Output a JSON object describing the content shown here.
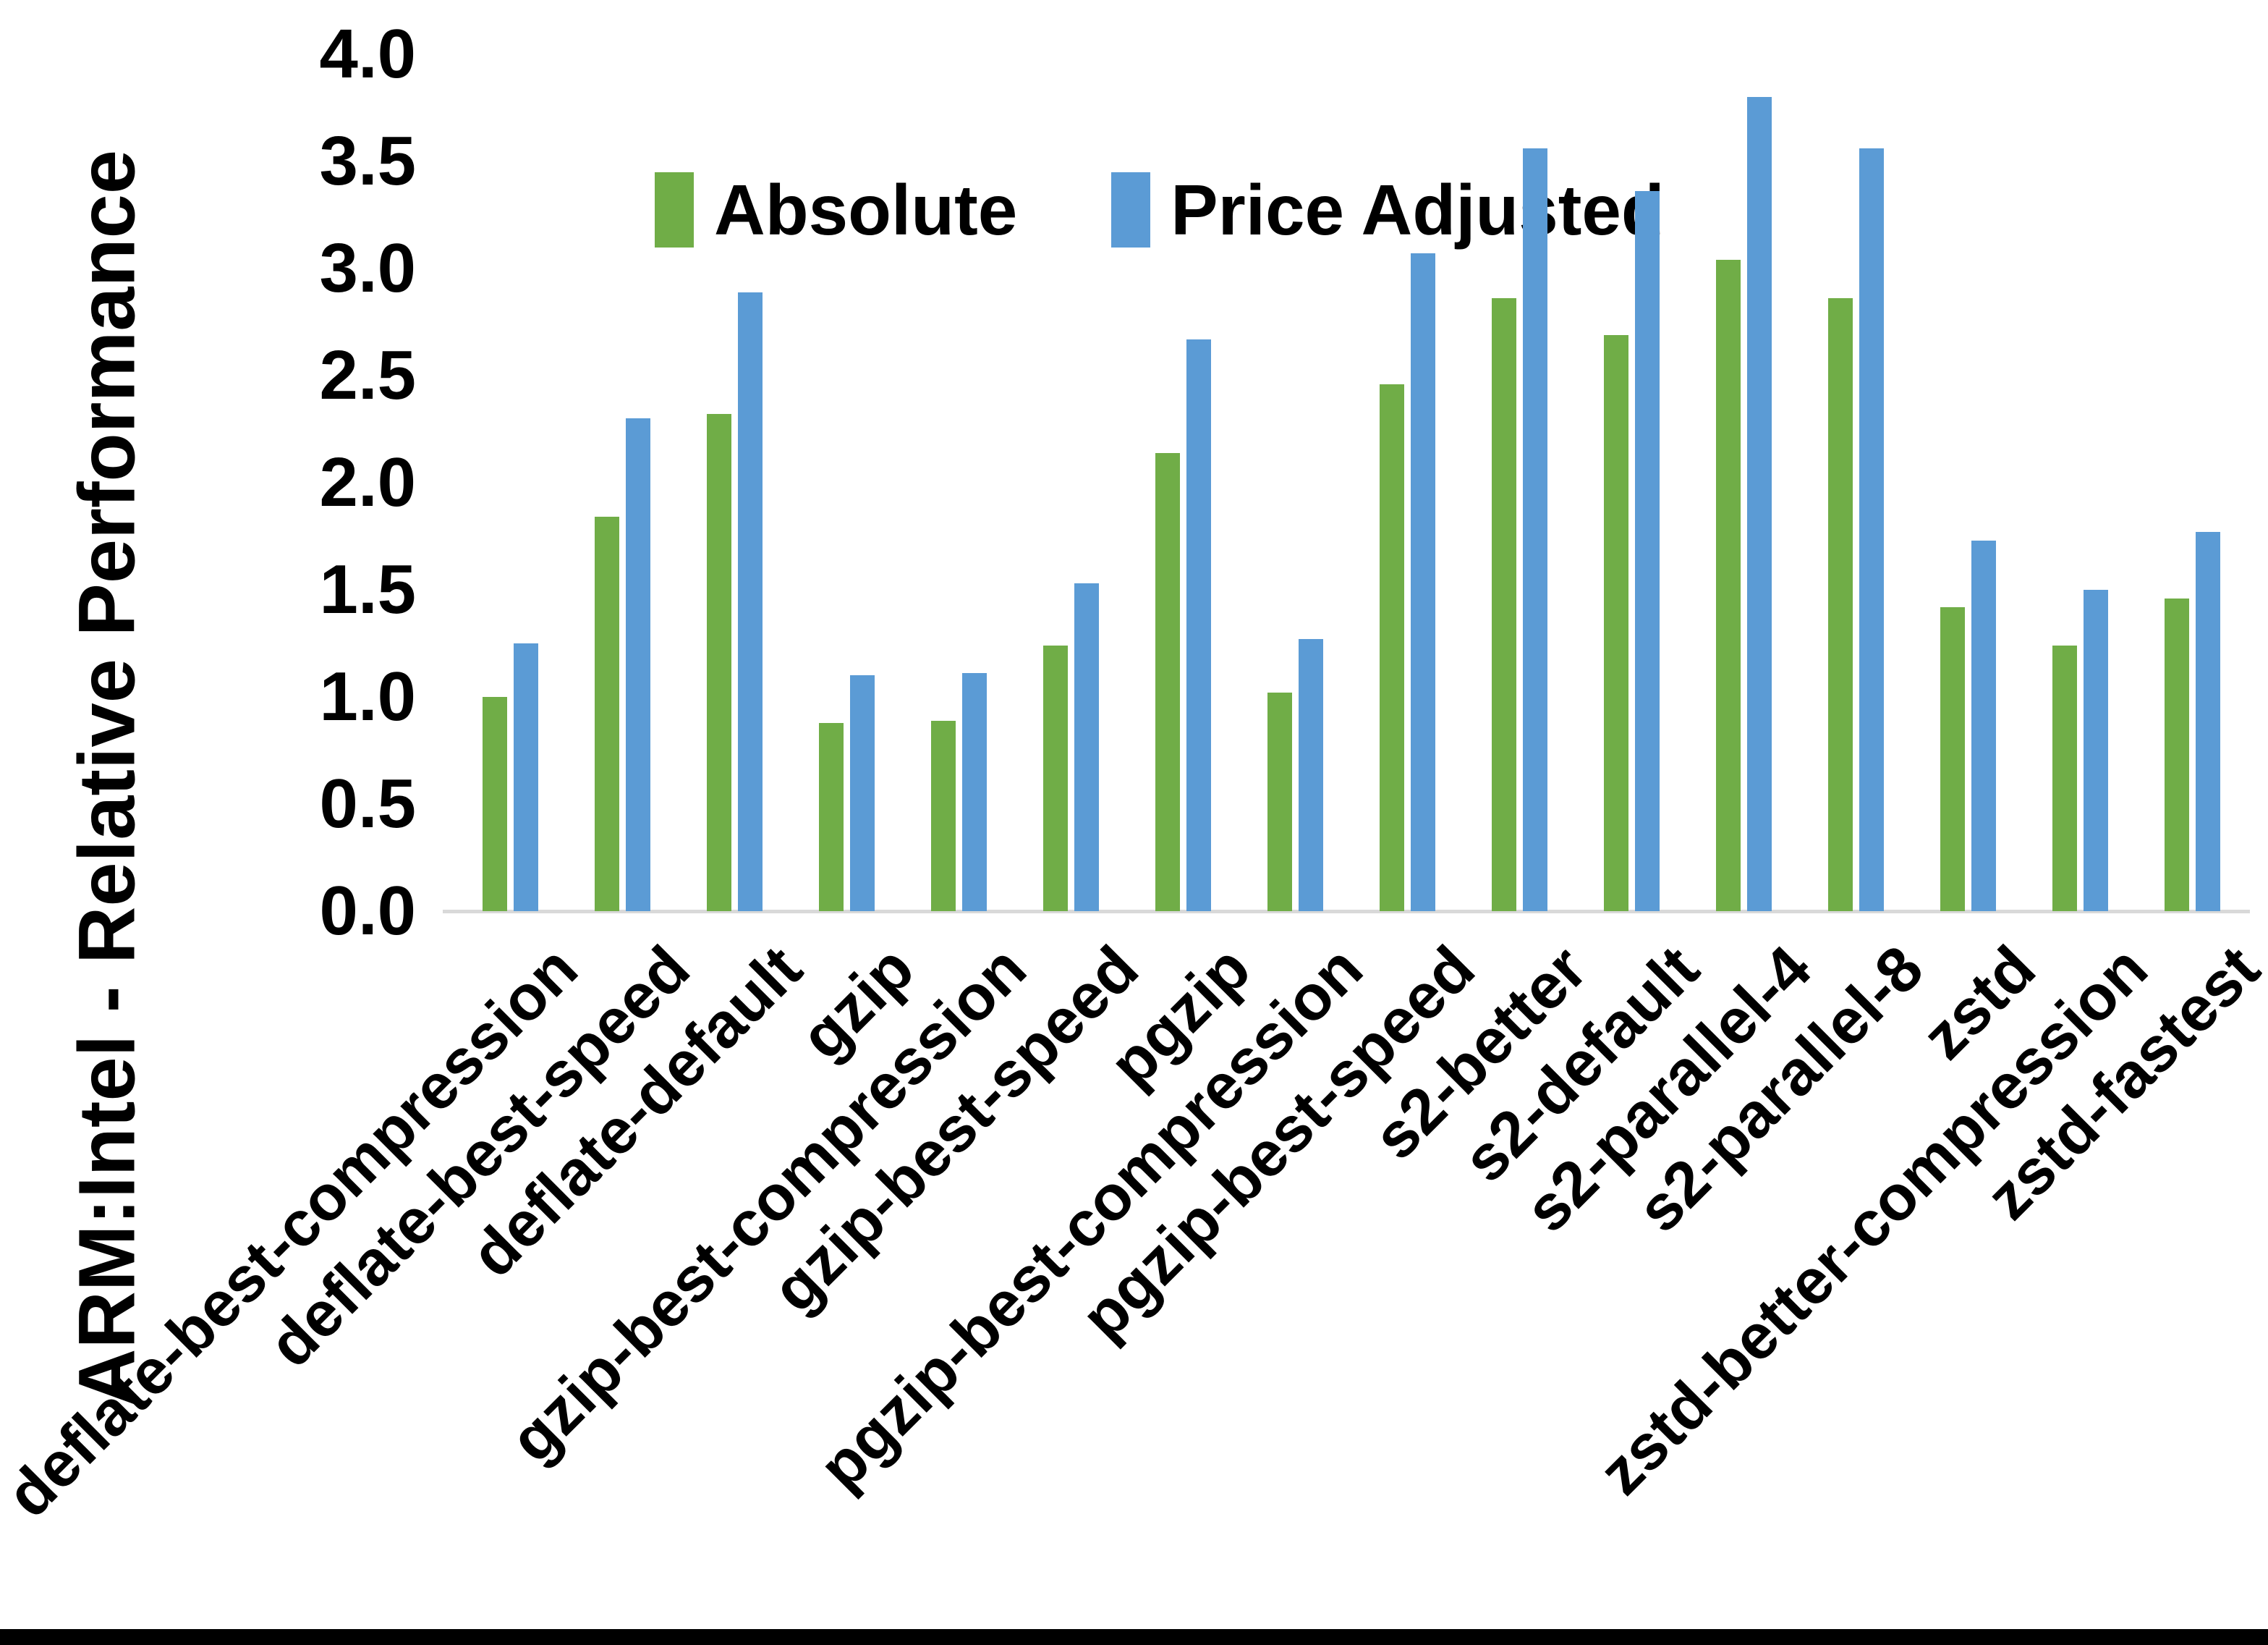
{
  "legend": {
    "items": [
      {
        "label": "Absolute",
        "color": "#70AD47"
      },
      {
        "label": "Price Adjusted",
        "color": "#5B9BD5"
      }
    ]
  },
  "y_axis": {
    "title": "ARM:Intel - Relative Performance",
    "tick_labels": [
      "0.0",
      "0.5",
      "1.0",
      "1.5",
      "2.0",
      "2.5",
      "3.0",
      "3.5",
      "4.0"
    ],
    "min": 0,
    "max": 4,
    "step": 0.5
  },
  "chart_data": {
    "type": "bar",
    "title": "",
    "xlabel": "",
    "ylabel": "ARM:Intel - Relative Performance",
    "ylim": [
      0,
      4
    ],
    "ytick_step": 0.5,
    "grid": false,
    "legend_position": "top-center",
    "axis_line_color": "#D9D9D9",
    "categories": [
      "deflate-best-compression",
      "deflate-best-speed",
      "deflate-default",
      "gzip",
      "gzip-best-compression",
      "gzip-best-speed",
      "pgzip",
      "pgzip-best-compression",
      "pgzip-best-speed",
      "s2-better",
      "s2-default",
      "s2-parallel-4",
      "s2-parallel-8",
      "zstd",
      "zstd-better-compression",
      "zstd-fastest"
    ],
    "series": [
      {
        "name": "Absolute",
        "color": "#70AD47",
        "values": [
          1.0,
          1.84,
          2.32,
          0.88,
          0.89,
          1.24,
          2.14,
          1.02,
          2.46,
          2.86,
          2.69,
          3.04,
          2.86,
          1.42,
          1.24,
          1.46
        ]
      },
      {
        "name": "Price Adjusted",
        "color": "#5B9BD5",
        "values": [
          1.25,
          2.3,
          2.89,
          1.1,
          1.11,
          1.53,
          2.67,
          1.27,
          3.07,
          3.56,
          3.36,
          3.8,
          3.56,
          1.73,
          1.5,
          1.77
        ]
      }
    ]
  }
}
